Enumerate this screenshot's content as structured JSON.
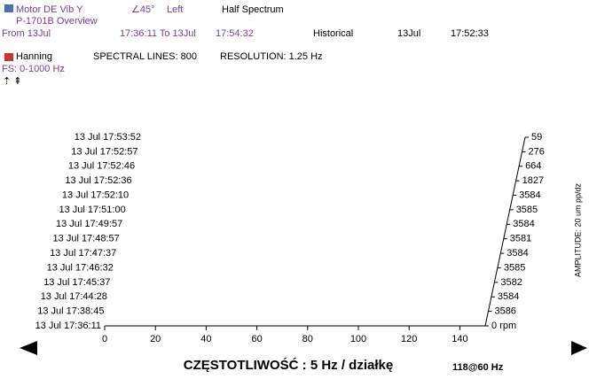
{
  "header": {
    "line1": [
      "Motor DE Vib Y",
      "∠45°",
      "Left",
      "Half Spectrum"
    ],
    "line2": "P-1701B Overview",
    "line3": [
      "From 13Jul",
      "17:36:11 To 13Jul",
      "17:54:32",
      "Historical",
      "13Jul",
      "17:52:33"
    ],
    "line4": [
      "Hanning",
      "SPECTRAL LINES: 800",
      "RESOLUTION: 1.25 Hz"
    ],
    "line5": "FS: 0-1000 Hz"
  },
  "plot": {
    "row_labels": [
      "13 Jul 17:53:52",
      "13 Jul 17:52:57",
      "13 Jul 17:52:46",
      "13 Jul 17:52:36",
      "13 Jul 17:52:10",
      "13 Jul 17:51:00",
      "13 Jul 17:49:57",
      "13 Jul 17:48:57",
      "13 Jul 17:47:37",
      "13 Jul 17:46:32",
      "13 Jul 17:45:37",
      "13 Jul 17:44:28",
      "13 Jul 17:38:45",
      "13 Jul 17:36:11"
    ],
    "rpm_labels": [
      "59",
      "276",
      "664",
      "1827",
      "3584",
      "3585",
      "3584",
      "3581",
      "3584",
      "3585",
      "3582",
      "3584",
      "3586",
      "0 rpm"
    ],
    "xlim": [
      0,
      150
    ],
    "xticks": [
      0,
      20,
      40,
      60,
      80,
      100,
      120,
      140
    ],
    "x_label": "CZĘSTOTLIWOŚĆ : 5 Hz / działkę",
    "y2_label": "AMPLITUDE: 20 um pp/dz",
    "footer": "118@60 Hz"
  }
}
